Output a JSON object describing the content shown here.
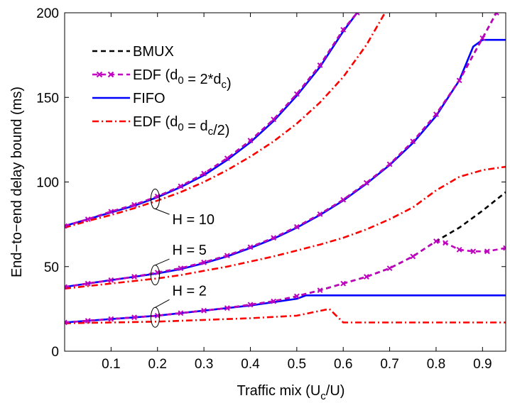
{
  "chart_data": {
    "type": "line",
    "title": "",
    "xlabel": {
      "main": "Traffic mix (U",
      "sub": "c",
      "tail": "/U)"
    },
    "ylabel": "End−to−end delay bound (ms)",
    "xlim": [
      0,
      0.95
    ],
    "ylim": [
      0,
      200
    ],
    "xticks": [
      0.1,
      0.2,
      0.3,
      0.4,
      0.5,
      0.6,
      0.7,
      0.8,
      0.9
    ],
    "xtick_labels": [
      "0.1",
      "0.2",
      "0.3",
      "0.4",
      "0.5",
      "0.6",
      "0.7",
      "0.8",
      "0.9"
    ],
    "yticks": [
      0,
      50,
      100,
      150,
      200
    ],
    "ytick_labels": [
      "0",
      "50",
      "100",
      "150",
      "200"
    ],
    "grid": false,
    "legend_position": "top-left",
    "legend": [
      {
        "key": "bmux",
        "parts": [
          {
            "t": "BMUX"
          }
        ],
        "color": "#000000",
        "style": "dashed"
      },
      {
        "key": "edf_2dc",
        "parts": [
          {
            "t": "EDF (d"
          },
          {
            "t": "0",
            "sub": true
          },
          {
            "t": " = 2*d"
          },
          {
            "t": "c",
            "sub": true
          },
          {
            "t": ")"
          }
        ],
        "color": "#bf00bf",
        "style": "dashed-x"
      },
      {
        "key": "fifo",
        "parts": [
          {
            "t": "FIFO"
          }
        ],
        "color": "#0000ff",
        "style": "solid"
      },
      {
        "key": "edf_dc2",
        "parts": [
          {
            "t": "EDF (d"
          },
          {
            "t": "0",
            "sub": true
          },
          {
            "t": " = d"
          },
          {
            "t": "c",
            "sub": true
          },
          {
            "t": "/2)"
          }
        ],
        "color": "#ff0000",
        "style": "dashdot"
      }
    ],
    "annotations": [
      {
        "text": "H  = 10",
        "x": 0.195,
        "y": 75
      },
      {
        "text": "H = 5",
        "x": 0.195,
        "y": 57
      },
      {
        "text": "H = 2",
        "x": 0.195,
        "y": 33
      }
    ],
    "series": [
      {
        "key": "fifo",
        "group": "H = 2",
        "x": [
          0.0,
          0.05,
          0.1,
          0.15,
          0.2,
          0.25,
          0.3,
          0.35,
          0.4,
          0.45,
          0.5,
          0.52,
          0.6,
          0.7,
          0.8,
          0.9,
          0.95
        ],
        "y": [
          17,
          18,
          19,
          20,
          21,
          22.5,
          24,
          25.5,
          27,
          29,
          31,
          33,
          33,
          33,
          33,
          33,
          33
        ]
      },
      {
        "key": "bmux",
        "group": "H = 2",
        "x": [
          0.0,
          0.05,
          0.1,
          0.15,
          0.2,
          0.25,
          0.3,
          0.35,
          0.4,
          0.45,
          0.5,
          0.55,
          0.6,
          0.65,
          0.7,
          0.75,
          0.8,
          0.85,
          0.9,
          0.95
        ],
        "y": [
          17,
          18,
          19,
          20,
          21,
          22.5,
          24,
          25.5,
          27.5,
          29.5,
          32.5,
          36,
          40,
          44,
          49,
          56,
          65,
          73,
          83,
          94
        ]
      },
      {
        "key": "edf_2dc",
        "group": "H = 2",
        "x": [
          0.0,
          0.05,
          0.1,
          0.15,
          0.2,
          0.25,
          0.3,
          0.35,
          0.4,
          0.45,
          0.5,
          0.55,
          0.6,
          0.65,
          0.7,
          0.75,
          0.8,
          0.82,
          0.85,
          0.88,
          0.91,
          0.95
        ],
        "y": [
          17,
          18,
          19,
          20,
          21,
          22.5,
          24,
          25.5,
          27.5,
          29.5,
          32.5,
          36,
          40,
          44,
          49,
          56,
          65,
          64,
          60,
          59,
          59,
          61
        ]
      },
      {
        "key": "edf_dc2",
        "group": "H = 2",
        "x": [
          0.0,
          0.1,
          0.2,
          0.3,
          0.4,
          0.5,
          0.57,
          0.6,
          0.7,
          0.8,
          0.9,
          0.95
        ],
        "y": [
          16.5,
          17,
          17.5,
          18.5,
          19.5,
          21,
          25,
          17,
          17,
          17,
          17,
          17
        ]
      },
      {
        "key": "fifo",
        "group": "H = 5",
        "x": [
          0.0,
          0.05,
          0.1,
          0.15,
          0.2,
          0.25,
          0.3,
          0.35,
          0.4,
          0.45,
          0.5,
          0.55,
          0.6,
          0.65,
          0.7,
          0.75,
          0.8,
          0.85,
          0.88,
          0.9,
          0.95
        ],
        "y": [
          38,
          40,
          42,
          44,
          46,
          48.5,
          52,
          56,
          61,
          66.5,
          73,
          80.5,
          89,
          99,
          110,
          123,
          139,
          160,
          180,
          184,
          184
        ]
      },
      {
        "key": "bmux",
        "group": "H = 5",
        "x": [
          0.0,
          0.05,
          0.1,
          0.15,
          0.2,
          0.25,
          0.3,
          0.35,
          0.4,
          0.45,
          0.5,
          0.55,
          0.6,
          0.65,
          0.7,
          0.75,
          0.8,
          0.85,
          0.9,
          0.93
        ],
        "y": [
          38,
          40,
          42,
          44,
          46.5,
          49,
          52.5,
          56.5,
          61.5,
          67,
          73.5,
          81,
          89.5,
          99.5,
          110.5,
          124,
          140,
          160,
          185,
          200
        ]
      },
      {
        "key": "edf_2dc",
        "group": "H = 5",
        "x": [
          0.0,
          0.05,
          0.1,
          0.15,
          0.2,
          0.25,
          0.3,
          0.35,
          0.4,
          0.45,
          0.5,
          0.55,
          0.6,
          0.65,
          0.7,
          0.75,
          0.8,
          0.85,
          0.9,
          0.93
        ],
        "y": [
          38,
          40,
          42,
          44,
          46.5,
          49,
          52.5,
          56.5,
          61.5,
          67,
          73.5,
          81,
          89.5,
          99.5,
          110.5,
          124,
          140,
          160,
          185,
          200
        ]
      },
      {
        "key": "edf_dc2",
        "group": "H = 5",
        "x": [
          0.0,
          0.05,
          0.1,
          0.15,
          0.2,
          0.25,
          0.3,
          0.35,
          0.4,
          0.45,
          0.5,
          0.55,
          0.6,
          0.65,
          0.7,
          0.75,
          0.8,
          0.85,
          0.9,
          0.95
        ],
        "y": [
          37,
          38.5,
          40,
          41.5,
          43,
          45,
          47.5,
          50,
          53,
          56,
          59.5,
          63,
          67,
          72,
          78,
          85,
          95,
          103,
          107,
          109
        ]
      },
      {
        "key": "fifo",
        "group": "H = 10",
        "x": [
          0.0,
          0.05,
          0.1,
          0.15,
          0.2,
          0.25,
          0.3,
          0.35,
          0.4,
          0.45,
          0.5,
          0.55,
          0.6,
          0.63
        ],
        "y": [
          74,
          78,
          82,
          86,
          91,
          97,
          104,
          113,
          123.5,
          136,
          151,
          168,
          189,
          200
        ]
      },
      {
        "key": "bmux",
        "group": "H = 10",
        "x": [
          0.0,
          0.05,
          0.1,
          0.15,
          0.2,
          0.25,
          0.3,
          0.35,
          0.4,
          0.45,
          0.5,
          0.55,
          0.6,
          0.63
        ],
        "y": [
          74,
          78,
          82.5,
          86.5,
          91.5,
          97.5,
          105,
          114,
          124.5,
          137,
          152,
          169,
          190,
          200
        ]
      },
      {
        "key": "edf_2dc",
        "group": "H = 10",
        "x": [
          0.0,
          0.05,
          0.1,
          0.15,
          0.2,
          0.25,
          0.3,
          0.35,
          0.4,
          0.45,
          0.5,
          0.55,
          0.6,
          0.63
        ],
        "y": [
          74,
          78,
          82.5,
          86.5,
          91.5,
          97.5,
          105,
          114,
          124.5,
          137,
          152,
          169,
          190,
          200
        ]
      },
      {
        "key": "edf_dc2",
        "group": "H = 10",
        "x": [
          0.0,
          0.05,
          0.1,
          0.15,
          0.2,
          0.25,
          0.3,
          0.35,
          0.4,
          0.45,
          0.5,
          0.55,
          0.6,
          0.65,
          0.69
        ],
        "y": [
          73,
          77,
          80.5,
          84.5,
          89,
          94,
          100,
          107,
          115,
          124,
          134.5,
          147,
          162,
          181,
          200
        ]
      }
    ]
  }
}
